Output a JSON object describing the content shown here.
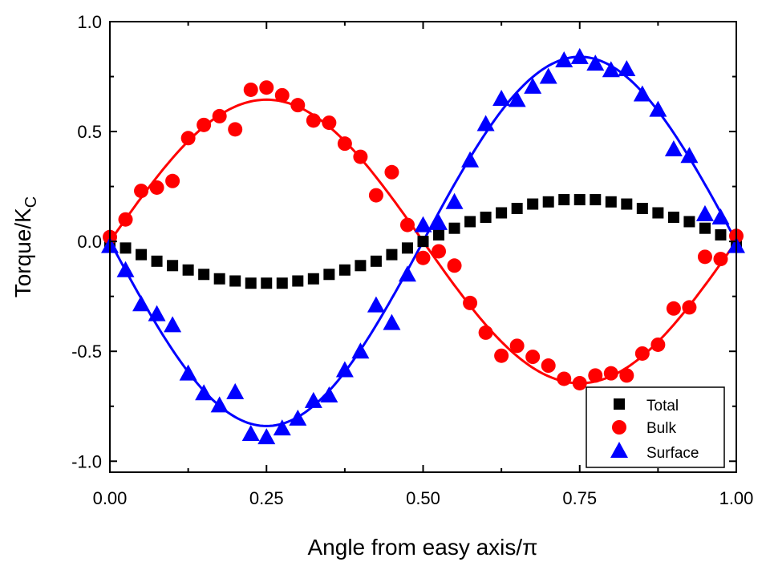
{
  "chart_data": {
    "type": "scatter",
    "title": "",
    "xlabel": "Angle from easy axis/π",
    "ylabel": "Torque/K",
    "ylabel_subscript": "C",
    "xlim": [
      0,
      1.0
    ],
    "ylim": [
      -1.05,
      1.0
    ],
    "xticks": [
      "0.00",
      "0.25",
      "0.50",
      "0.75",
      "1.00"
    ],
    "xtick_values": [
      0,
      0.25,
      0.5,
      0.75,
      1.0
    ],
    "yticks": [
      "1.0",
      "0.5",
      "0.0",
      "-0.5",
      "-1.0"
    ],
    "ytick_values": [
      1.0,
      0.5,
      0.0,
      -0.5,
      -1.0
    ],
    "grid": false,
    "legend_position": "bottom-right",
    "x": [
      0,
      0.025,
      0.05,
      0.075,
      0.1,
      0.125,
      0.15,
      0.175,
      0.2,
      0.225,
      0.25,
      0.275,
      0.3,
      0.325,
      0.35,
      0.375,
      0.4,
      0.425,
      0.45,
      0.475,
      0.5,
      0.525,
      0.55,
      0.575,
      0.6,
      0.625,
      0.65,
      0.675,
      0.7,
      0.725,
      0.75,
      0.775,
      0.8,
      0.825,
      0.85,
      0.875,
      0.9,
      0.925,
      0.95,
      0.975,
      1.0
    ],
    "series": [
      {
        "name": "Total",
        "marker": "square",
        "color": "#000000",
        "values": [
          0,
          -0.03,
          -0.06,
          -0.09,
          -0.11,
          -0.13,
          -0.15,
          -0.17,
          -0.18,
          -0.19,
          -0.19,
          -0.19,
          -0.18,
          -0.17,
          -0.15,
          -0.13,
          -0.11,
          -0.09,
          -0.06,
          -0.03,
          0,
          0.03,
          0.06,
          0.09,
          0.11,
          0.13,
          0.15,
          0.17,
          0.18,
          0.19,
          0.19,
          0.19,
          0.18,
          0.17,
          0.15,
          0.13,
          0.11,
          0.09,
          0.06,
          0.03,
          0
        ],
        "fit": null
      },
      {
        "name": "Bulk",
        "marker": "circle",
        "color": "#ff0000",
        "values": [
          0.02,
          0.1,
          0.23,
          0.245,
          0.275,
          0.47,
          0.53,
          0.57,
          0.51,
          0.69,
          0.7,
          0.665,
          0.62,
          0.55,
          0.54,
          0.445,
          0.385,
          0.21,
          0.315,
          0.075,
          -0.075,
          -0.045,
          -0.11,
          -0.28,
          -0.415,
          -0.52,
          -0.475,
          -0.525,
          -0.565,
          -0.625,
          -0.645,
          -0.61,
          -0.6,
          -0.61,
          -0.51,
          -0.47,
          -0.305,
          -0.3,
          -0.07,
          -0.08,
          0.025
        ],
        "fit": {
          "form": "A*sin(2*pi*x)",
          "A": 0.645
        }
      },
      {
        "name": "Surface",
        "marker": "triangle",
        "color": "#0000ff",
        "values": [
          -0.02,
          -0.13,
          -0.285,
          -0.33,
          -0.38,
          -0.6,
          -0.69,
          -0.745,
          -0.685,
          -0.875,
          -0.89,
          -0.85,
          -0.805,
          -0.725,
          -0.7,
          -0.585,
          -0.5,
          -0.29,
          -0.37,
          -0.15,
          0.075,
          0.085,
          0.18,
          0.37,
          0.535,
          0.65,
          0.645,
          0.705,
          0.75,
          0.825,
          0.84,
          0.81,
          0.78,
          0.785,
          0.67,
          0.6,
          0.42,
          0.39,
          0.125,
          0.11,
          -0.02
        ],
        "fit": {
          "form": "A*sin(2*pi*x)",
          "A": -0.84
        }
      }
    ]
  }
}
